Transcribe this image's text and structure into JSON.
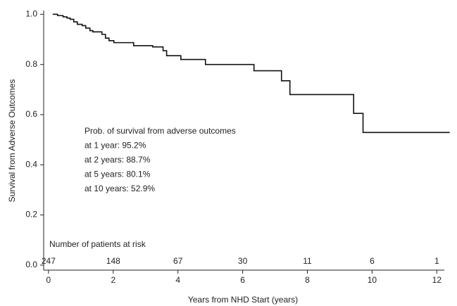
{
  "chart_data": {
    "type": "step",
    "x_label": "Years from NHD Start (years)",
    "y_label": "Survival from Adverse Outcomes",
    "x": [
      0.13,
      0.28,
      0.45,
      0.57,
      0.67,
      0.78,
      0.89,
      1.04,
      1.15,
      1.28,
      1.37,
      1.65,
      1.76,
      1.87,
      2.02,
      2.63,
      3.22,
      3.54,
      3.65,
      4.09,
      4.85,
      5.74,
      6.35,
      7.2,
      7.46,
      9.43,
      9.72,
      12.4
    ],
    "values": [
      1.0,
      0.995,
      0.99,
      0.985,
      0.98,
      0.97,
      0.96,
      0.955,
      0.945,
      0.935,
      0.93,
      0.92,
      0.905,
      0.895,
      0.887,
      0.875,
      0.87,
      0.855,
      0.835,
      0.82,
      0.8,
      0.8,
      0.775,
      0.735,
      0.68,
      0.605,
      0.529,
      0.529
    ],
    "color": "#111111",
    "xlim": [
      -0.15,
      12.45
    ],
    "ylim": [
      -0.02,
      1.015
    ],
    "xticks": [
      0,
      2,
      4,
      6,
      8,
      10,
      12
    ],
    "yticks": [
      {
        "value": 0,
        "label": "0.0"
      },
      0.2,
      0.4,
      0.6,
      0.8,
      {
        "value": 1,
        "label": "1.0"
      }
    ],
    "annotation": [
      "Prob. of survival from adverse outcomes",
      "at 1 year: 95.2%",
      "at 2 years: 88.7%",
      "at 5 years: 80.1%",
      "at 10 years: 52.9%"
    ],
    "at_risk": {
      "title": "Number of patients at risk",
      "values": [
        247,
        148,
        67,
        30,
        11,
        6,
        1
      ]
    }
  }
}
